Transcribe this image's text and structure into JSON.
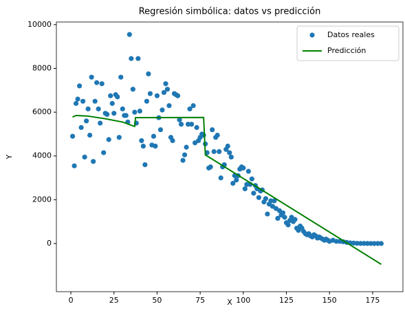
{
  "chart_data": {
    "type": "scatter",
    "title": "Regresión simbólica: datos vs predicción",
    "xlabel": "X",
    "ylabel": "Y",
    "xlim": [
      -8.4,
      192.6
    ],
    "ylim": [
      -2200,
      10120
    ],
    "xticks": [
      0,
      25,
      50,
      75,
      100,
      125,
      150,
      175
    ],
    "yticks": [
      0,
      2000,
      4000,
      6000,
      8000,
      10000
    ],
    "grid": false,
    "legend": "upper right",
    "series": [
      {
        "name": "Datos reales",
        "type": "scatter",
        "color": "#1f77b4",
        "x": [
          1,
          2,
          3,
          4,
          5,
          6,
          7,
          8,
          9,
          10,
          11,
          12,
          13,
          14,
          15,
          16,
          17,
          18,
          19,
          20,
          21,
          22,
          23,
          24,
          25,
          26,
          27,
          28,
          29,
          30,
          31,
          32,
          33,
          34,
          35,
          36,
          37,
          38,
          39,
          40,
          41,
          42,
          43,
          44,
          45,
          46,
          47,
          48,
          49,
          50,
          51,
          52,
          53,
          54,
          55,
          56,
          57,
          58,
          59,
          60,
          61,
          62,
          63,
          64,
          65,
          66,
          67,
          68,
          69,
          70,
          71,
          72,
          73,
          74,
          75,
          76,
          77,
          78,
          79,
          80,
          81,
          82,
          83,
          84,
          85,
          86,
          87,
          88,
          89,
          90,
          91,
          92,
          93,
          94,
          95,
          96,
          97,
          98,
          99,
          100,
          101,
          102,
          103,
          104,
          105,
          106,
          107,
          108,
          109,
          110,
          111,
          112,
          113,
          114,
          115,
          116,
          117,
          118,
          119,
          120,
          121,
          122,
          123,
          124,
          125,
          126,
          127,
          128,
          129,
          130,
          131,
          132,
          133,
          134,
          135,
          136,
          137,
          138,
          139,
          140,
          141,
          142,
          143,
          144,
          145,
          146,
          147,
          148,
          149,
          150,
          152,
          154,
          156,
          158,
          160,
          162,
          164,
          166,
          168,
          170,
          172,
          174,
          176,
          178,
          180
        ],
        "values": [
          4900,
          3550,
          6400,
          6600,
          7200,
          5300,
          6500,
          3950,
          5600,
          6150,
          4950,
          7600,
          3750,
          6500,
          7350,
          6150,
          5500,
          7300,
          4150,
          5950,
          5900,
          4750,
          6750,
          6400,
          5950,
          6800,
          6700,
          4850,
          7600,
          6150,
          5850,
          5850,
          5550,
          9550,
          8450,
          7050,
          6000,
          5500,
          8450,
          6050,
          4700,
          4450,
          3600,
          6500,
          7750,
          6850,
          4500,
          4900,
          4450,
          6750,
          5750,
          5200,
          6100,
          6900,
          7300,
          7050,
          6300,
          4850,
          4700,
          6850,
          6800,
          6750,
          5650,
          5450,
          3800,
          4050,
          4400,
          5450,
          6150,
          5450,
          6300,
          4600,
          5300,
          4700,
          4850,
          5000,
          4950,
          4550,
          4150,
          3450,
          3500,
          5200,
          4200,
          4850,
          4950,
          4200,
          3000,
          3500,
          3600,
          4300,
          4450,
          4150,
          3950,
          2750,
          3100,
          2900,
          3100,
          3400,
          3500,
          3450,
          2500,
          2700,
          3300,
          2700,
          2950,
          2300,
          2650,
          2500,
          2100,
          2400,
          2450,
          1900,
          2050,
          1350,
          1800,
          1950,
          1700,
          1950,
          1600,
          1150,
          1500,
          1300,
          1400,
          1200,
          950,
          850,
          1050,
          1200,
          1000,
          1100,
          700,
          600,
          800,
          700,
          550,
          450,
          400,
          450,
          350,
          300,
          400,
          350,
          250,
          300,
          250,
          200,
          150,
          200,
          150,
          100,
          150,
          100,
          100,
          80,
          50,
          30,
          20,
          10,
          5,
          5,
          3,
          2,
          1,
          1,
          0
        ]
      },
      {
        "name": "Predicción",
        "type": "line",
        "color": "#008000",
        "x": [
          1,
          3,
          10,
          20,
          30,
          37,
          37.5,
          77,
          78,
          180
        ],
        "values": [
          5780,
          5850,
          5820,
          5700,
          5550,
          5350,
          5750,
          5760,
          4050,
          -950
        ]
      }
    ]
  }
}
